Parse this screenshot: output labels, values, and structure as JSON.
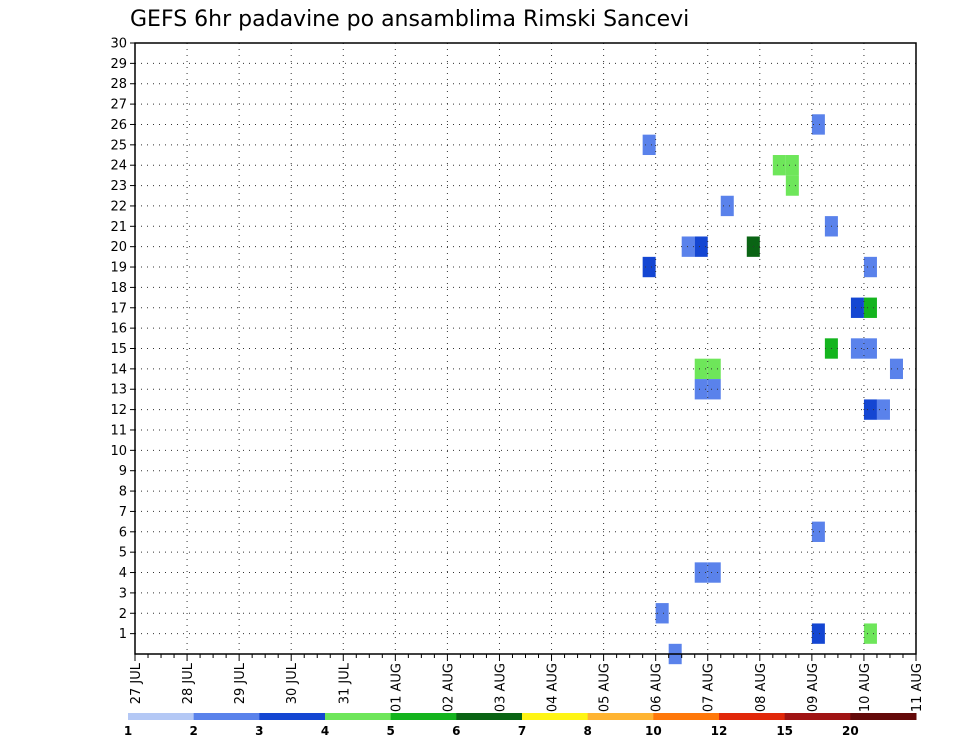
{
  "chart_data": {
    "type": "heatmap",
    "title": "GEFS 6hr padavine po ansamblima Rimski Sancevi",
    "x_tick_labels": [
      "27 JUL",
      "28 JUL",
      "29 JUL",
      "30 JUL",
      "31 JUL",
      "01 AUG",
      "02 AUG",
      "03 AUG",
      "04 AUG",
      "05 AUG",
      "06 AUG",
      "07 AUG",
      "08 AUG",
      "09 AUG",
      "10 AUG",
      "11 AUG"
    ],
    "y_tick_labels": [
      "1",
      "2",
      "3",
      "4",
      "5",
      "6",
      "7",
      "8",
      "9",
      "10",
      "11",
      "12",
      "13",
      "14",
      "15",
      "16",
      "17",
      "18",
      "19",
      "20",
      "21",
      "22",
      "23",
      "24",
      "25",
      "26",
      "27",
      "28",
      "29",
      "30"
    ],
    "x_unit": "6-hour step from 27 JUL 00Z",
    "y_label_meaning": "ensemble member",
    "grid": true,
    "colorbar": {
      "tick_labels": [
        "1",
        "2",
        "3",
        "4",
        "5",
        "6",
        "7",
        "8",
        "10",
        "12",
        "15",
        "20"
      ],
      "colors": [
        "#b4c8f5",
        "#5a82eb",
        "#1446d2",
        "#6ee65a",
        "#14b41e",
        "#0a6414",
        "#fff514",
        "#ffb432",
        "#ff780a",
        "#e1280a",
        "#a01414",
        "#640a0a"
      ]
    },
    "cells": [
      [
        30,
        60,
        1
      ],
      [
        30,
        78,
        4
      ],
      [
        30,
        79,
        1
      ],
      [
        29,
        75,
        1
      ],
      [
        29,
        76,
        2
      ],
      [
        28,
        70,
        2
      ],
      [
        26,
        52,
        1
      ],
      [
        26,
        62,
        1
      ],
      [
        26,
        63,
        1
      ],
      [
        25,
        39,
        1
      ],
      [
        24,
        49,
        3
      ],
      [
        24,
        50,
        3
      ],
      [
        24,
        82,
        4
      ],
      [
        24,
        83,
        6
      ],
      [
        23,
        50,
        3
      ],
      [
        23,
        63,
        2
      ],
      [
        23,
        64,
        1
      ],
      [
        22,
        45,
        1
      ],
      [
        21,
        53,
        1
      ],
      [
        21,
        69,
        2
      ],
      [
        21,
        81,
        2
      ],
      [
        20,
        42,
        1
      ],
      [
        20,
        43,
        2
      ],
      [
        20,
        47,
        5
      ],
      [
        19,
        39,
        2
      ],
      [
        19,
        56,
        1
      ],
      [
        19,
        62,
        1
      ],
      [
        19,
        63,
        4
      ],
      [
        17,
        55,
        2
      ],
      [
        17,
        56,
        4
      ],
      [
        17,
        75,
        1
      ],
      [
        17,
        76,
        1
      ],
      [
        15,
        53,
        4
      ],
      [
        15,
        55,
        1
      ],
      [
        15,
        56,
        1
      ],
      [
        15,
        62,
        1
      ],
      [
        15,
        69,
        2
      ],
      [
        15,
        70,
        2
      ],
      [
        14,
        43,
        3
      ],
      [
        14,
        44,
        3
      ],
      [
        14,
        58,
        1
      ],
      [
        14,
        62,
        2
      ],
      [
        13,
        43,
        1
      ],
      [
        13,
        44,
        1
      ],
      [
        13,
        73,
        2
      ],
      [
        13,
        74,
        7
      ],
      [
        13,
        91,
        2
      ],
      [
        12,
        56,
        2
      ],
      [
        12,
        57,
        1
      ],
      [
        12,
        62,
        4
      ],
      [
        10,
        86,
        2
      ],
      [
        8,
        86,
        3
      ],
      [
        6,
        52,
        1
      ],
      [
        5,
        63,
        1
      ],
      [
        5,
        64,
        1
      ],
      [
        5,
        69,
        5
      ],
      [
        5,
        87,
        1
      ],
      [
        4,
        43,
        1
      ],
      [
        4,
        44,
        1
      ],
      [
        4,
        73,
        2
      ],
      [
        4,
        74,
        9
      ],
      [
        4,
        75,
        2
      ],
      [
        4,
        77,
        2
      ],
      [
        4,
        78,
        1
      ],
      [
        2,
        40,
        1
      ],
      [
        1,
        52,
        2
      ],
      [
        1,
        56,
        3
      ],
      [
        1,
        91,
        1
      ],
      [
        0,
        41,
        1
      ]
    ]
  }
}
